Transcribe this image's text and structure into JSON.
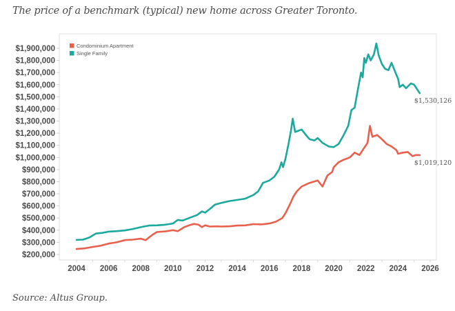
{
  "title": "The price of a benchmark (typical) new home across Greater Toronto.",
  "source": "Source: Altus Group.",
  "chart_data": {
    "type": "line",
    "title": "The price of a benchmark (typical) new home across Greater Toronto.",
    "xlabel": "",
    "ylabel": "",
    "xlim": [
      2003.2,
      2026.4
    ],
    "ylim": [
      170000,
      1960000
    ],
    "x_ticks": [
      2004,
      2006,
      2008,
      2010,
      2012,
      2014,
      2016,
      2018,
      2020,
      2022,
      2024,
      2026
    ],
    "x_tick_labels": [
      "2004",
      "2006",
      "2008",
      "2010",
      "2012",
      "2014",
      "2016",
      "2018",
      "2020",
      "2022",
      "2024",
      "2026"
    ],
    "y_ticks": [
      200000,
      300000,
      400000,
      500000,
      600000,
      700000,
      800000,
      900000,
      1000000,
      1100000,
      1200000,
      1300000,
      1400000,
      1500000,
      1600000,
      1700000,
      1800000,
      1900000
    ],
    "y_tick_labels": [
      "$200,000",
      "$300,000",
      "$400,000",
      "$500,000",
      "$600,000",
      "$700,000",
      "$800,000",
      "$900,000",
      "$1,000,000",
      "$1,100,000",
      "$1,200,000",
      "$1,300,000",
      "$1,400,000",
      "$1,500,000",
      "$1,600,000",
      "$1,700,000",
      "$1,800,000",
      "$1,900,000"
    ],
    "grid": false,
    "legend_position": "top-left",
    "series": [
      {
        "name": "Condominium Apartment",
        "color": "#e8604c",
        "end_label": "$1,019,120",
        "points": [
          [
            2004.0,
            245000
          ],
          [
            2004.5,
            250000
          ],
          [
            2005.0,
            262000
          ],
          [
            2005.5,
            272000
          ],
          [
            2006.0,
            290000
          ],
          [
            2006.5,
            300000
          ],
          [
            2007.0,
            318000
          ],
          [
            2007.5,
            322000
          ],
          [
            2008.0,
            330000
          ],
          [
            2008.3,
            318000
          ],
          [
            2008.7,
            360000
          ],
          [
            2009.0,
            385000
          ],
          [
            2009.5,
            390000
          ],
          [
            2010.0,
            400000
          ],
          [
            2010.3,
            392000
          ],
          [
            2010.7,
            425000
          ],
          [
            2011.0,
            440000
          ],
          [
            2011.3,
            452000
          ],
          [
            2011.6,
            445000
          ],
          [
            2011.8,
            425000
          ],
          [
            2012.0,
            440000
          ],
          [
            2012.3,
            430000
          ],
          [
            2012.7,
            432000
          ],
          [
            2013.0,
            430000
          ],
          [
            2013.5,
            432000
          ],
          [
            2014.0,
            438000
          ],
          [
            2014.5,
            440000
          ],
          [
            2015.0,
            450000
          ],
          [
            2015.5,
            448000
          ],
          [
            2016.0,
            455000
          ],
          [
            2016.4,
            470000
          ],
          [
            2016.8,
            500000
          ],
          [
            2017.0,
            540000
          ],
          [
            2017.3,
            620000
          ],
          [
            2017.5,
            680000
          ],
          [
            2017.7,
            720000
          ],
          [
            2018.0,
            760000
          ],
          [
            2018.5,
            790000
          ],
          [
            2019.0,
            810000
          ],
          [
            2019.3,
            760000
          ],
          [
            2019.6,
            850000
          ],
          [
            2019.9,
            880000
          ],
          [
            2020.0,
            920000
          ],
          [
            2020.3,
            960000
          ],
          [
            2020.6,
            980000
          ],
          [
            2021.0,
            1000000
          ],
          [
            2021.3,
            1040000
          ],
          [
            2021.6,
            1020000
          ],
          [
            2021.9,
            1080000
          ],
          [
            2022.1,
            1120000
          ],
          [
            2022.25,
            1260000
          ],
          [
            2022.4,
            1170000
          ],
          [
            2022.7,
            1185000
          ],
          [
            2023.0,
            1150000
          ],
          [
            2023.3,
            1110000
          ],
          [
            2023.6,
            1090000
          ],
          [
            2023.9,
            1060000
          ],
          [
            2024.0,
            1030000
          ],
          [
            2024.3,
            1040000
          ],
          [
            2024.6,
            1045000
          ],
          [
            2024.9,
            1010000
          ],
          [
            2025.1,
            1020000
          ],
          [
            2025.35,
            1019120
          ]
        ]
      },
      {
        "name": "Single Family",
        "color": "#1aa99c",
        "end_label": "$1,530,126",
        "points": [
          [
            2004.0,
            320000
          ],
          [
            2004.4,
            322000
          ],
          [
            2004.8,
            340000
          ],
          [
            2005.2,
            372000
          ],
          [
            2005.6,
            378000
          ],
          [
            2006.0,
            388000
          ],
          [
            2006.5,
            392000
          ],
          [
            2007.0,
            398000
          ],
          [
            2007.5,
            410000
          ],
          [
            2008.0,
            425000
          ],
          [
            2008.5,
            438000
          ],
          [
            2009.0,
            440000
          ],
          [
            2009.5,
            445000
          ],
          [
            2010.0,
            455000
          ],
          [
            2010.3,
            485000
          ],
          [
            2010.6,
            480000
          ],
          [
            2011.0,
            500000
          ],
          [
            2011.5,
            525000
          ],
          [
            2011.8,
            555000
          ],
          [
            2012.0,
            545000
          ],
          [
            2012.3,
            575000
          ],
          [
            2012.6,
            610000
          ],
          [
            2013.0,
            625000
          ],
          [
            2013.5,
            640000
          ],
          [
            2014.0,
            650000
          ],
          [
            2014.5,
            660000
          ],
          [
            2015.0,
            690000
          ],
          [
            2015.3,
            720000
          ],
          [
            2015.6,
            790000
          ],
          [
            2016.0,
            810000
          ],
          [
            2016.3,
            840000
          ],
          [
            2016.6,
            900000
          ],
          [
            2016.75,
            960000
          ],
          [
            2016.85,
            920000
          ],
          [
            2017.0,
            990000
          ],
          [
            2017.2,
            1120000
          ],
          [
            2017.35,
            1230000
          ],
          [
            2017.45,
            1320000
          ],
          [
            2017.6,
            1210000
          ],
          [
            2017.8,
            1220000
          ],
          [
            2018.0,
            1230000
          ],
          [
            2018.3,
            1180000
          ],
          [
            2018.5,
            1150000
          ],
          [
            2018.8,
            1140000
          ],
          [
            2019.0,
            1160000
          ],
          [
            2019.3,
            1120000
          ],
          [
            2019.7,
            1090000
          ],
          [
            2020.0,
            1085000
          ],
          [
            2020.3,
            1110000
          ],
          [
            2020.6,
            1180000
          ],
          [
            2020.9,
            1260000
          ],
          [
            2021.1,
            1390000
          ],
          [
            2021.3,
            1410000
          ],
          [
            2021.5,
            1560000
          ],
          [
            2021.7,
            1700000
          ],
          [
            2021.8,
            1660000
          ],
          [
            2021.9,
            1820000
          ],
          [
            2022.0,
            1780000
          ],
          [
            2022.15,
            1850000
          ],
          [
            2022.3,
            1800000
          ],
          [
            2022.5,
            1850000
          ],
          [
            2022.65,
            1940000
          ],
          [
            2022.8,
            1840000
          ],
          [
            2023.0,
            1770000
          ],
          [
            2023.2,
            1730000
          ],
          [
            2023.4,
            1720000
          ],
          [
            2023.6,
            1780000
          ],
          [
            2023.9,
            1680000
          ],
          [
            2024.0,
            1650000
          ],
          [
            2024.1,
            1580000
          ],
          [
            2024.3,
            1600000
          ],
          [
            2024.5,
            1570000
          ],
          [
            2024.8,
            1610000
          ],
          [
            2025.0,
            1600000
          ],
          [
            2025.2,
            1560000
          ],
          [
            2025.35,
            1530126
          ]
        ]
      }
    ]
  }
}
